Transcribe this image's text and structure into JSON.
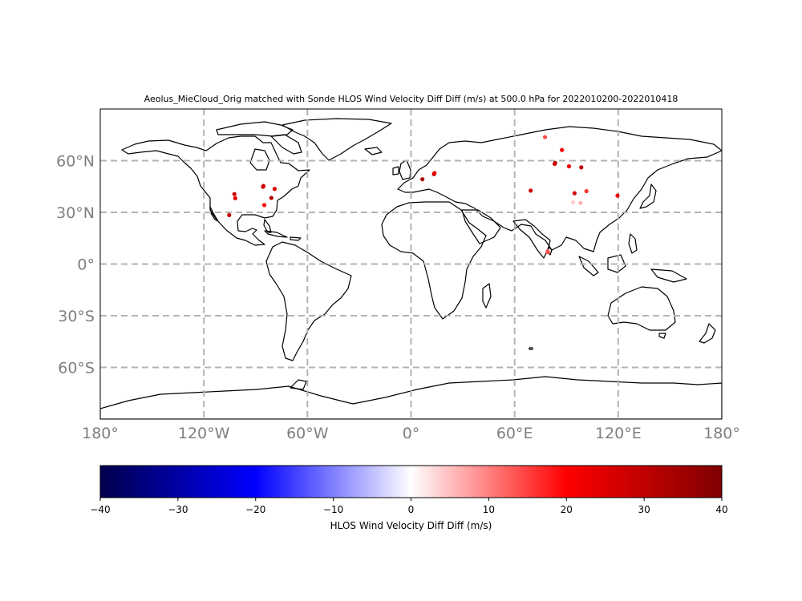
{
  "title": "Aeolus_MieCloud_Orig matched with Sonde HLOS Wind Velocity Diff Diff (m/s) at 500.0 hPa for 2022010200-2022010418",
  "lon_ticks": [
    {
      "value": -180,
      "label": "180°"
    },
    {
      "value": -120,
      "label": "120°W"
    },
    {
      "value": -60,
      "label": "60°W"
    },
    {
      "value": 0,
      "label": "0°"
    },
    {
      "value": 60,
      "label": "60°E"
    },
    {
      "value": 120,
      "label": "120°E"
    },
    {
      "value": 180,
      "label": "180°"
    }
  ],
  "lat_ticks": [
    {
      "value": 60,
      "label": "60°N"
    },
    {
      "value": 30,
      "label": "30°N"
    },
    {
      "value": 0,
      "label": "0°"
    },
    {
      "value": -30,
      "label": "30°S"
    },
    {
      "value": -60,
      "label": "60°S"
    }
  ],
  "colorbar": {
    "label": "HLOS Wind Velocity Diff Diff (m/s)",
    "min": -40,
    "max": 40,
    "ticks": [
      {
        "value": -40,
        "label": "−40"
      },
      {
        "value": -30,
        "label": "−30"
      },
      {
        "value": -20,
        "label": "−20"
      },
      {
        "value": -10,
        "label": "−10"
      },
      {
        "value": 0,
        "label": "0"
      },
      {
        "value": 10,
        "label": "10"
      },
      {
        "value": 20,
        "label": "20"
      },
      {
        "value": 30,
        "label": "30"
      },
      {
        "value": 40,
        "label": "40"
      }
    ],
    "colormap": "seismic",
    "colors": [
      "#00004c",
      "#0000ff",
      "#ffffff",
      "#ff0000",
      "#7f0000"
    ]
  },
  "map": {
    "projection": "PlateCarree",
    "lon_range": [
      -180,
      180
    ],
    "lat_range": [
      -90,
      90
    ],
    "grid": true,
    "grid_style": "dashed"
  },
  "points": [
    {
      "lon": -102.3,
      "lat": 40.6,
      "value": 28
    },
    {
      "lon": -101.8,
      "lat": 38.2,
      "value": 24
    },
    {
      "lon": -85.7,
      "lat": 44.8,
      "value": 25
    },
    {
      "lon": -85.5,
      "lat": 45.3,
      "value": 28
    },
    {
      "lon": -79.0,
      "lat": 43.6,
      "value": 26
    },
    {
      "lon": -80.9,
      "lat": 38.4,
      "value": 33
    },
    {
      "lon": -85.0,
      "lat": 34.2,
      "value": 20
    },
    {
      "lon": -105.3,
      "lat": 28.4,
      "value": 28
    },
    {
      "lon": 6.6,
      "lat": 49.2,
      "value": 33
    },
    {
      "lon": 13.3,
      "lat": 52.2,
      "value": 28
    },
    {
      "lon": 13.6,
      "lat": 52.8,
      "value": 24
    },
    {
      "lon": 69.3,
      "lat": 42.6,
      "value": 27
    },
    {
      "lon": 77.6,
      "lat": 73.7,
      "value": 14
    },
    {
      "lon": 83.2,
      "lat": 58.1,
      "value": 26
    },
    {
      "lon": 83.5,
      "lat": 58.7,
      "value": 29
    },
    {
      "lon": 87.4,
      "lat": 66.2,
      "value": 22
    },
    {
      "lon": 91.5,
      "lat": 56.7,
      "value": 22
    },
    {
      "lon": 98.6,
      "lat": 56.1,
      "value": 30
    },
    {
      "lon": 94.7,
      "lat": 41.1,
      "value": 27
    },
    {
      "lon": 101.6,
      "lat": 42.3,
      "value": 16
    },
    {
      "lon": 93.9,
      "lat": 35.8,
      "value": 4
    },
    {
      "lon": 98.2,
      "lat": 35.5,
      "value": 6
    },
    {
      "lon": 119.6,
      "lat": 39.7,
      "value": 22
    },
    {
      "lon": 79.1,
      "lat": 7.4,
      "value": 12
    },
    {
      "lon": 79.3,
      "lat": 6.9,
      "value": 14
    }
  ]
}
